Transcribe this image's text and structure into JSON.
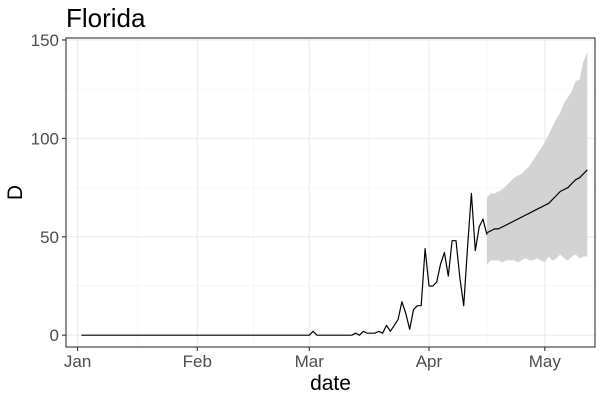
{
  "chart_data": {
    "type": "line",
    "title": "Florida",
    "xlabel": "date",
    "ylabel": "D",
    "x_ticks": [
      {
        "date": "2020-01-01",
        "label": "Jan"
      },
      {
        "date": "2020-02-01",
        "label": "Feb"
      },
      {
        "date": "2020-03-01",
        "label": "Mar"
      },
      {
        "date": "2020-04-01",
        "label": "Apr"
      },
      {
        "date": "2020-05-01",
        "label": "May"
      }
    ],
    "y_ticks": [
      0,
      50,
      100,
      150
    ],
    "xlim": [
      "2019-12-29",
      "2020-05-14"
    ],
    "ylim": [
      -6,
      151
    ],
    "grid": true,
    "colors": {
      "line": "#000000",
      "ribbon": "#d3d3d3"
    },
    "series": [
      {
        "kind": "observed",
        "points": [
          [
            "2020-01-02",
            0
          ],
          [
            "2020-03-01",
            0
          ],
          [
            "2020-03-02",
            2
          ],
          [
            "2020-03-03",
            0
          ],
          [
            "2020-03-12",
            0
          ],
          [
            "2020-03-13",
            1
          ],
          [
            "2020-03-14",
            0
          ],
          [
            "2020-03-15",
            2
          ],
          [
            "2020-03-16",
            1
          ],
          [
            "2020-03-17",
            1
          ],
          [
            "2020-03-18",
            1
          ],
          [
            "2020-03-19",
            2
          ],
          [
            "2020-03-20",
            1
          ],
          [
            "2020-03-21",
            5
          ],
          [
            "2020-03-22",
            2
          ],
          [
            "2020-03-23",
            5
          ],
          [
            "2020-03-24",
            8
          ],
          [
            "2020-03-25",
            17
          ],
          [
            "2020-03-26",
            11
          ],
          [
            "2020-03-27",
            3
          ],
          [
            "2020-03-28",
            13
          ],
          [
            "2020-03-29",
            15
          ],
          [
            "2020-03-30",
            15
          ],
          [
            "2020-03-31",
            44
          ],
          [
            "2020-04-01",
            25
          ],
          [
            "2020-04-02",
            25
          ],
          [
            "2020-04-03",
            27
          ],
          [
            "2020-04-04",
            36
          ],
          [
            "2020-04-05",
            42
          ],
          [
            "2020-04-06",
            30
          ],
          [
            "2020-04-07",
            48
          ],
          [
            "2020-04-08",
            48
          ],
          [
            "2020-04-09",
            29
          ],
          [
            "2020-04-10",
            15
          ],
          [
            "2020-04-11",
            45
          ],
          [
            "2020-04-12",
            72
          ],
          [
            "2020-04-13",
            43
          ],
          [
            "2020-04-14",
            55
          ],
          [
            "2020-04-15",
            59
          ],
          [
            "2020-04-16",
            51
          ]
        ]
      },
      {
        "kind": "forecast",
        "points": [
          [
            "2020-04-16",
            52
          ],
          [
            "2020-04-17",
            53
          ],
          [
            "2020-04-18",
            54
          ],
          [
            "2020-04-19",
            54
          ],
          [
            "2020-04-20",
            55
          ],
          [
            "2020-04-21",
            56
          ],
          [
            "2020-04-22",
            57
          ],
          [
            "2020-04-23",
            58
          ],
          [
            "2020-04-24",
            59
          ],
          [
            "2020-04-25",
            60
          ],
          [
            "2020-04-26",
            61
          ],
          [
            "2020-04-27",
            62
          ],
          [
            "2020-04-28",
            63
          ],
          [
            "2020-04-29",
            64
          ],
          [
            "2020-04-30",
            65
          ],
          [
            "2020-05-01",
            66
          ],
          [
            "2020-05-02",
            67
          ],
          [
            "2020-05-03",
            69
          ],
          [
            "2020-05-04",
            71
          ],
          [
            "2020-05-05",
            73
          ],
          [
            "2020-05-06",
            74
          ],
          [
            "2020-05-07",
            75
          ],
          [
            "2020-05-08",
            77
          ],
          [
            "2020-05-09",
            79
          ],
          [
            "2020-05-10",
            80
          ],
          [
            "2020-05-11",
            82
          ],
          [
            "2020-05-12",
            84
          ]
        ]
      }
    ],
    "ribbon": {
      "kind": "forecast interval",
      "points": [
        [
          "2020-04-16",
          36,
          70
        ],
        [
          "2020-04-17",
          38,
          72
        ],
        [
          "2020-04-18",
          38,
          72
        ],
        [
          "2020-04-19",
          38,
          73
        ],
        [
          "2020-04-20",
          37,
          74
        ],
        [
          "2020-04-21",
          38,
          76
        ],
        [
          "2020-04-22",
          38,
          78
        ],
        [
          "2020-04-23",
          38,
          80
        ],
        [
          "2020-04-24",
          37,
          81
        ],
        [
          "2020-04-25",
          38,
          82
        ],
        [
          "2020-04-26",
          39,
          84
        ],
        [
          "2020-04-27",
          38,
          86
        ],
        [
          "2020-04-28",
          38,
          89
        ],
        [
          "2020-04-29",
          39,
          92
        ],
        [
          "2020-04-30",
          38,
          95
        ],
        [
          "2020-05-01",
          37,
          98
        ],
        [
          "2020-05-02",
          40,
          102
        ],
        [
          "2020-05-03",
          38,
          106
        ],
        [
          "2020-05-04",
          39,
          110
        ],
        [
          "2020-05-05",
          41,
          113
        ],
        [
          "2020-05-06",
          39,
          118
        ],
        [
          "2020-05-07",
          38,
          121
        ],
        [
          "2020-05-08",
          40,
          124
        ],
        [
          "2020-05-09",
          41,
          129
        ],
        [
          "2020-05-10",
          39,
          130
        ],
        [
          "2020-05-11",
          40,
          139
        ],
        [
          "2020-05-12",
          40,
          144
        ]
      ]
    }
  }
}
